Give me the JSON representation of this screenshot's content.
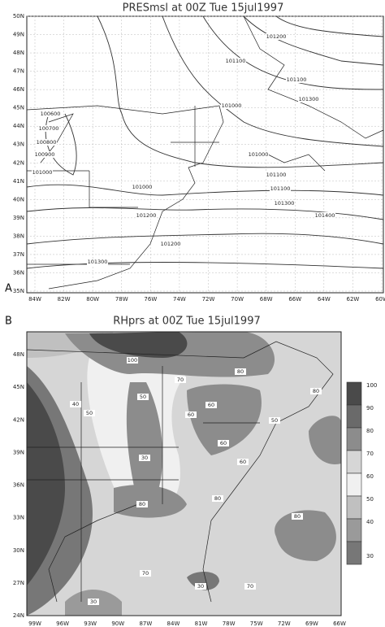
{
  "panel_a": {
    "letter": "A",
    "title": "PRESmsl at 00Z Tue 15jul1997",
    "lat_labels": [
      "50N",
      "49N",
      "48N",
      "47N",
      "46N",
      "45N",
      "44N",
      "43N",
      "42N",
      "41N",
      "40N",
      "39N",
      "38N",
      "37N",
      "36N",
      "35N"
    ],
    "lon_labels": [
      "84W",
      "82W",
      "80W",
      "78W",
      "76W",
      "74W",
      "72W",
      "70W",
      "68W",
      "66W",
      "64W",
      "62W",
      "60W"
    ],
    "contour_labels": [
      "101200",
      "101100",
      "101100",
      "101300",
      "101000",
      "100600",
      "100700",
      "100800",
      "100900",
      "101000",
      "101000",
      "101100",
      "101200",
      "101300",
      "101400",
      "101000",
      "101100",
      "101200",
      "101300"
    ]
  },
  "panel_b": {
    "letter": "B",
    "title": "RHprs at 00Z Tue 15jul1997",
    "lat_labels": [
      "48N",
      "45N",
      "42N",
      "39N",
      "36N",
      "33N",
      "30N",
      "27N",
      "24N"
    ],
    "lon_labels": [
      "99W",
      "96W",
      "93W",
      "90W",
      "87W",
      "84W",
      "81W",
      "78W",
      "75W",
      "72W",
      "69W",
      "66W"
    ],
    "contour_labels": [
      "100",
      "80",
      "70",
      "60",
      "60",
      "50",
      "40",
      "50",
      "30",
      "80",
      "50",
      "60",
      "60",
      "80",
      "80",
      "80",
      "30",
      "70",
      "70",
      "30"
    ],
    "colorbar": [
      {
        "label": "100",
        "color": "#4a4a4a"
      },
      {
        "label": "90",
        "color": "#6a6a6a"
      },
      {
        "label": "80",
        "color": "#8c8c8c"
      },
      {
        "label": "70",
        "color": "#d6d6d6"
      },
      {
        "label": "60",
        "color": "#f0f0f0"
      },
      {
        "label": "50",
        "color": "#c0c0c0"
      },
      {
        "label": "40",
        "color": "#9a9a9a"
      },
      {
        "label": "30",
        "color": "#777777"
      }
    ]
  }
}
